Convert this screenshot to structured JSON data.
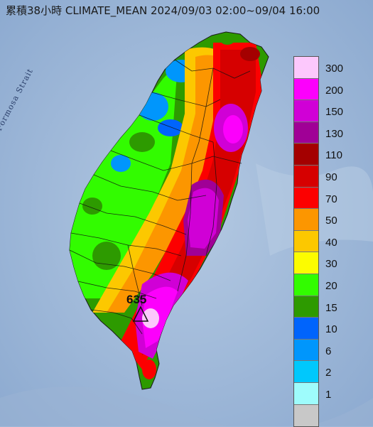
{
  "title": "累積38小時 CLIMATE_MEAN 2024/09/03 02:00~09/04 16:00",
  "strait_label": "Formosa Strait",
  "max_value_label": "635",
  "legend": [
    {
      "label": "300",
      "color": "#fcc8fc"
    },
    {
      "label": "200",
      "color": "#fc00fc"
    },
    {
      "label": "150",
      "color": "#d000d6"
    },
    {
      "label": "130",
      "color": "#a00096"
    },
    {
      "label": "110",
      "color": "#a40000"
    },
    {
      "label": "90",
      "color": "#d60000"
    },
    {
      "label": "70",
      "color": "#fc0000"
    },
    {
      "label": "50",
      "color": "#fc9600"
    },
    {
      "label": "40",
      "color": "#fcc800"
    },
    {
      "label": "30",
      "color": "#fcfc00"
    },
    {
      "label": "20",
      "color": "#32fc00"
    },
    {
      "label": "15",
      "color": "#2d9a00"
    },
    {
      "label": "10",
      "color": "#0064fc"
    },
    {
      "label": "6",
      "color": "#0096fc"
    },
    {
      "label": "2",
      "color": "#00c8fc"
    },
    {
      "label": "1",
      "color": "#9efcfc"
    },
    {
      "label": "",
      "color": "#c8c8c8"
    }
  ]
}
